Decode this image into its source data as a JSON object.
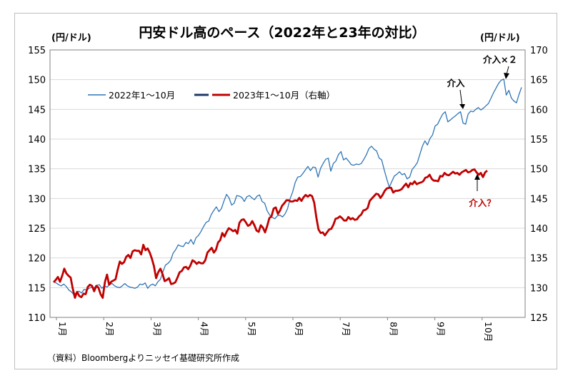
{
  "chart_data": {
    "type": "line",
    "title": "円安ドル高のペース（2022年と23年の対比）",
    "ylabel_left": "(円/ドル)",
    "ylabel_right": "(円/ドル)",
    "ylim_left": [
      110,
      155
    ],
    "ylim_right": [
      125,
      170
    ],
    "yticks_left": [
      "110",
      "115",
      "120",
      "125",
      "130",
      "135",
      "140",
      "145",
      "150",
      "155"
    ],
    "yticks_right": [
      "125",
      "130",
      "135",
      "140",
      "145",
      "150",
      "155",
      "160",
      "165",
      "170"
    ],
    "months": [
      "1月",
      "2月",
      "3月",
      "4月",
      "5月",
      "6月",
      "7月",
      "8月",
      "9月",
      "10月"
    ],
    "source": "（資料）Bloombergよりニッセイ基礎研究所作成",
    "legend_position": "top-left",
    "grid": true,
    "annotations": {
      "a1": "介入",
      "a2": "介入×２",
      "a3": "介入？"
    },
    "series": [
      {
        "name": "2022年1～10月",
        "axis": "left",
        "color": "#2e75b6",
        "values": [
          116.0,
          115.8,
          115.5,
          115.3,
          115.6,
          115.2,
          114.6,
          114.3,
          113.8,
          114.2,
          114.4,
          114.1,
          114.7,
          114.6,
          114.9,
          115.1,
          115.0,
          115.4,
          115.5,
          114.9,
          115.3,
          115.1,
          115.5,
          115.7,
          115.3,
          115.1,
          115.0,
          115.3,
          115.7,
          115.3,
          115.1,
          115.0,
          114.9,
          115.1,
          115.6,
          115.5,
          115.8,
          114.9,
          115.4,
          115.6,
          115.3,
          116.0,
          116.4,
          117.7,
          118.8,
          119.1,
          119.6,
          120.8,
          121.4,
          122.2,
          122.0,
          121.9,
          122.6,
          122.4,
          123.1,
          122.3,
          123.4,
          123.8,
          124.5,
          125.3,
          126.0,
          126.2,
          127.3,
          128.0,
          128.6,
          127.8,
          128.3,
          129.6,
          130.7,
          130.1,
          128.9,
          129.2,
          130.5,
          130.4,
          130.2,
          129.5,
          130.3,
          130.5,
          130.1,
          129.8,
          130.4,
          130.6,
          129.5,
          129.2,
          127.9,
          127.2,
          126.8,
          126.6,
          127.1,
          127.2,
          126.9,
          127.4,
          128.3,
          130.0,
          131.1,
          132.7,
          133.6,
          133.7,
          134.2,
          134.8,
          135.4,
          134.7,
          135.3,
          135.2,
          133.6,
          135.1,
          135.9,
          136.6,
          136.8,
          134.6,
          135.9,
          136.3,
          137.4,
          137.9,
          136.5,
          136.8,
          136.3,
          135.7,
          135.6,
          135.8,
          135.7,
          135.9,
          136.6,
          137.4,
          138.4,
          138.8,
          138.3,
          138.0,
          136.8,
          136.5,
          134.8,
          133.3,
          131.9,
          132.9,
          133.8,
          134.1,
          134.5,
          134.0,
          134.2,
          133.3,
          133.6,
          134.9,
          135.4,
          136.0,
          137.4,
          138.8,
          139.7,
          139.0,
          140.1,
          140.7,
          142.2,
          142.5,
          143.4,
          144.2,
          144.6,
          142.9,
          143.2,
          143.6,
          143.9,
          144.3,
          144.6,
          142.7,
          142.5,
          144.2,
          144.7,
          144.6,
          145.0,
          145.3,
          144.9,
          145.2,
          145.6,
          146.0,
          146.9,
          147.8,
          148.6,
          149.4,
          149.9,
          150.1,
          147.4,
          148.2,
          146.9,
          146.4,
          146.1,
          147.5,
          148.7
        ]
      },
      {
        "name": "2023年1～10月（右軸）",
        "axis": "right",
        "color": "#c00000",
        "values": [
          130.9,
          131.3,
          131.8,
          131.0,
          132.0,
          133.2,
          132.4,
          132.0,
          131.7,
          129.8,
          128.3,
          129.3,
          128.6,
          128.4,
          129.0,
          128.9,
          130.1,
          130.5,
          130.3,
          129.4,
          130.3,
          130.0,
          128.9,
          128.3,
          130.9,
          132.2,
          130.5,
          131.0,
          131.2,
          131.4,
          133.0,
          134.4,
          134.0,
          134.3,
          135.2,
          135.5,
          135.0,
          136.1,
          136.3,
          136.2,
          136.2,
          135.6,
          137.2,
          136.3,
          136.6,
          135.9,
          134.9,
          133.6,
          131.6,
          132.6,
          133.2,
          132.3,
          131.1,
          131.3,
          131.6,
          130.6,
          130.7,
          130.9,
          131.7,
          132.6,
          132.8,
          133.4,
          133.5,
          133.1,
          133.7,
          134.6,
          134.4,
          134.0,
          134.3,
          134.1,
          134.1,
          134.6,
          135.9,
          136.3,
          136.7,
          135.9,
          136.4,
          137.6,
          138.0,
          139.2,
          138.6,
          139.4,
          140.0,
          139.8,
          139.5,
          139.7,
          139.1,
          140.9,
          141.4,
          141.5,
          141.0,
          140.4,
          140.6,
          141.2,
          140.5,
          139.6,
          139.4,
          140.5,
          140.1,
          139.3,
          140.4,
          141.7,
          142.0,
          143.3,
          143.5,
          142.4,
          143.0,
          143.8,
          144.2,
          144.7,
          144.7,
          144.5,
          144.5,
          144.7,
          144.6,
          145.1,
          144.6,
          145.2,
          145.6,
          145.3,
          145.6,
          145.4,
          144.3,
          141.8,
          139.8,
          139.2,
          139.3,
          138.8,
          139.3,
          139.8,
          139.9,
          140.6,
          141.6,
          141.7,
          142.0,
          141.7,
          141.3,
          141.3,
          141.9,
          141.5,
          141.7,
          141.4,
          141.5,
          142.0,
          142.3,
          143.0,
          143.1,
          143.4,
          144.6,
          145.0,
          145.4,
          145.8,
          145.7,
          145.1,
          145.6,
          146.3,
          146.7,
          146.8,
          146.8,
          146.0,
          146.3,
          146.3,
          146.4,
          146.6,
          147.1,
          147.5,
          146.9,
          147.6,
          147.4,
          147.9,
          147.4,
          147.6,
          147.7,
          147.9,
          148.5,
          148.6,
          149.0,
          148.3,
          148.0,
          148.0,
          147.9,
          148.8,
          148.7,
          149.3,
          149.0,
          148.9,
          149.2,
          149.5,
          149.2,
          149.3,
          149.0,
          149.4,
          149.6,
          149.8,
          149.4,
          149.5,
          149.8,
          149.9,
          149.4,
          149.0,
          149.3,
          148.6,
          149.4,
          149.7
        ]
      }
    ]
  }
}
